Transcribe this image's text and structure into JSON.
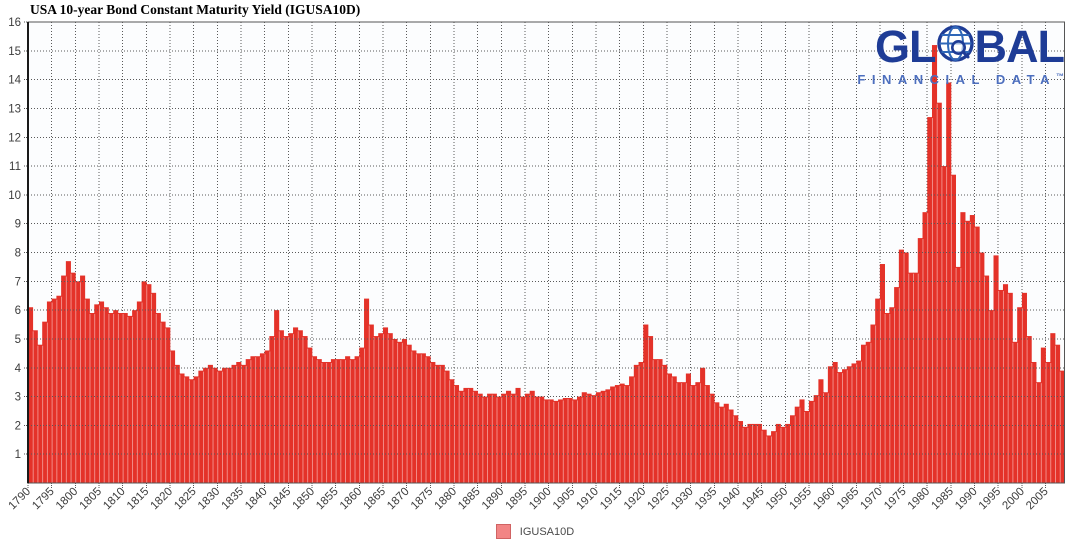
{
  "title": "USA 10-year Bond Constant Maturity Yield (IGUSA10D)",
  "logo": {
    "word_start": "GL",
    "word_end": "BAL",
    "subtitle": "FINANCIAL DATA",
    "trademark": "™",
    "color_primary": "#1e3c96",
    "color_secondary": "#4d6fbe",
    "globe_color": "#2f67b8"
  },
  "legend": {
    "label": "IGUSA10D",
    "swatch_color": "#f28585"
  },
  "chart_data": {
    "type": "area",
    "title": "USA 10-year Bond Constant Maturity Yield (IGUSA10D)",
    "series_name": "IGUSA10D",
    "xlabel": "",
    "ylabel": "",
    "x_start_year": 1790,
    "x_end_year": 2008,
    "x_step_years": 1,
    "ylim": [
      0,
      16
    ],
    "grid": true,
    "legend_position": "bottom-center",
    "fill_color": "#e43229",
    "stripe_color": "#f49490",
    "y_tick_labels": [
      1,
      2,
      3,
      4,
      5,
      6,
      7,
      8,
      9,
      10,
      11,
      12,
      13,
      14,
      15,
      16
    ],
    "x_tick_labels": [
      "1790",
      "1795",
      "1800",
      "1805",
      "1810",
      "1815",
      "1820",
      "1825",
      "1830",
      "1835",
      "1840",
      "1845",
      "1850",
      "1855",
      "1860",
      "1865",
      "1870",
      "1875",
      "1880",
      "1885",
      "1890",
      "1895",
      "1900",
      "1905",
      "1910",
      "1915",
      "1920",
      "1925",
      "1930",
      "1935",
      "1940",
      "1945",
      "1950",
      "1955",
      "1960",
      "1965",
      "1970",
      "1975",
      "1980",
      "1985",
      "1990",
      "1995",
      "2000",
      "2005"
    ],
    "values": [
      6.1,
      5.3,
      4.8,
      5.6,
      6.3,
      6.4,
      6.5,
      7.2,
      7.7,
      7.3,
      7.0,
      7.2,
      6.4,
      5.9,
      6.2,
      6.3,
      6.1,
      5.9,
      6.0,
      5.9,
      5.9,
      5.8,
      6.0,
      6.3,
      7.0,
      6.9,
      6.6,
      5.9,
      5.6,
      5.4,
      4.6,
      4.1,
      3.8,
      3.7,
      3.6,
      3.7,
      3.9,
      4.0,
      4.1,
      4.0,
      3.9,
      4.0,
      4.0,
      4.1,
      4.2,
      4.1,
      4.3,
      4.4,
      4.4,
      4.5,
      4.6,
      5.1,
      6.0,
      5.3,
      5.1,
      5.2,
      5.4,
      5.3,
      5.1,
      4.7,
      4.4,
      4.3,
      4.2,
      4.2,
      4.3,
      4.3,
      4.3,
      4.4,
      4.3,
      4.4,
      4.7,
      6.4,
      5.5,
      5.1,
      5.2,
      5.4,
      5.2,
      5.0,
      4.9,
      5.0,
      4.8,
      4.6,
      4.5,
      4.5,
      4.4,
      4.2,
      4.1,
      4.1,
      3.9,
      3.6,
      3.4,
      3.2,
      3.3,
      3.3,
      3.2,
      3.1,
      3.0,
      3.1,
      3.1,
      3.0,
      3.1,
      3.2,
      3.1,
      3.3,
      3.0,
      3.1,
      3.2,
      3.0,
      3.0,
      2.9,
      2.9,
      2.85,
      2.9,
      2.95,
      2.95,
      2.9,
      3.0,
      3.15,
      3.1,
      3.05,
      3.15,
      3.2,
      3.25,
      3.35,
      3.4,
      3.45,
      3.4,
      3.7,
      4.1,
      4.2,
      5.5,
      5.1,
      4.3,
      4.3,
      4.1,
      3.8,
      3.7,
      3.5,
      3.5,
      3.8,
      3.4,
      3.5,
      4.0,
      3.4,
      3.1,
      2.8,
      2.65,
      2.75,
      2.55,
      2.35,
      2.15,
      1.95,
      2.05,
      2.05,
      2.05,
      1.85,
      1.65,
      1.8,
      2.05,
      1.95,
      2.05,
      2.35,
      2.65,
      2.9,
      2.5,
      2.85,
      3.05,
      3.6,
      3.15,
      4.05,
      4.2,
      3.85,
      3.95,
      4.05,
      4.15,
      4.25,
      4.8,
      4.9,
      5.5,
      6.4,
      7.6,
      5.9,
      6.1,
      6.8,
      8.1,
      8.0,
      7.3,
      7.3,
      8.5,
      9.4,
      12.7,
      15.2,
      13.2,
      11.0,
      13.9,
      10.7,
      7.5,
      9.4,
      9.1,
      9.3,
      8.9,
      8.0,
      7.2,
      6.0,
      7.9,
      6.7,
      6.9,
      6.6,
      4.9,
      6.1,
      6.6,
      5.1,
      4.2,
      3.5,
      4.7,
      4.2,
      5.2,
      4.8,
      3.9
    ]
  }
}
